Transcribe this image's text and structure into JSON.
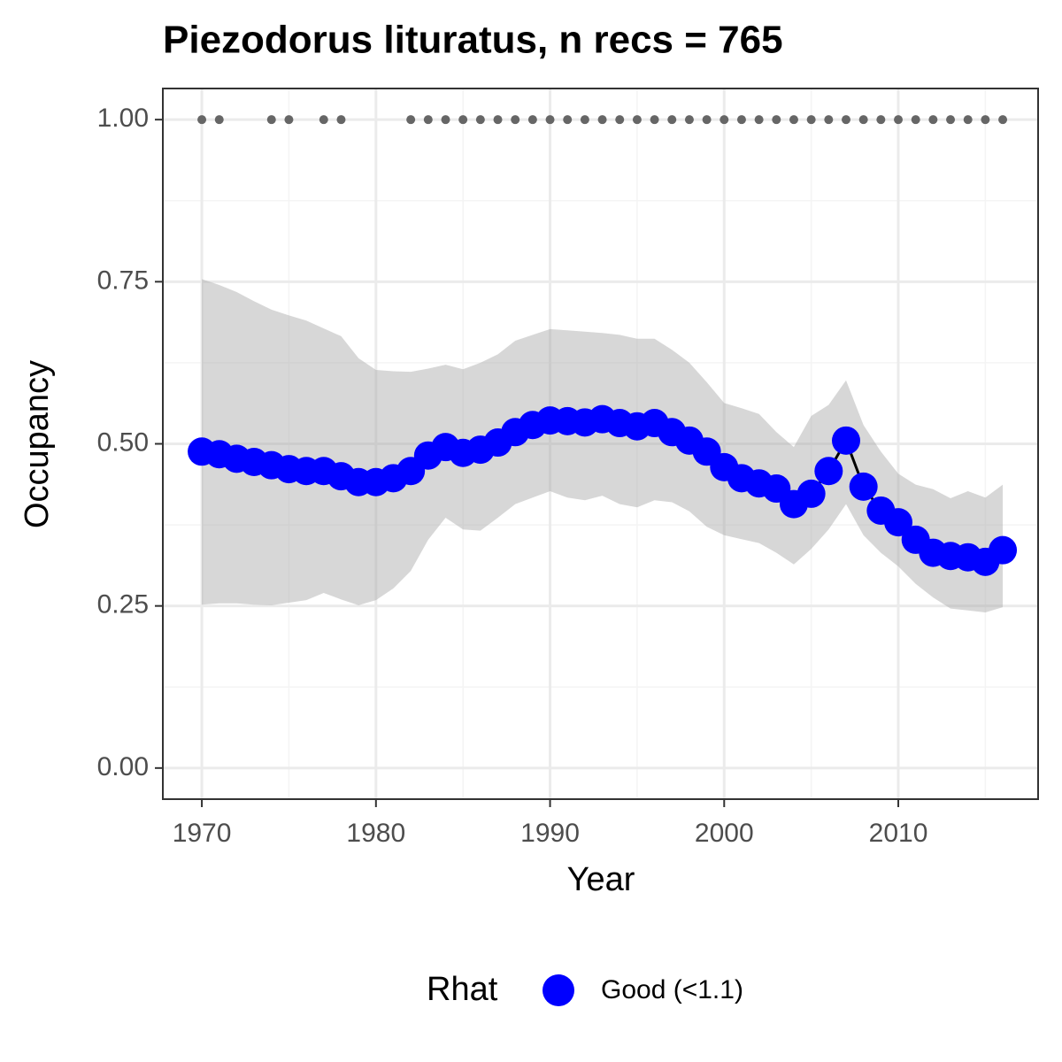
{
  "chart_data": {
    "type": "line",
    "title": "Piezodorus lituratus, n recs = 765",
    "x_label": "Year",
    "y_label": "Occupancy",
    "legend_title": "Rhat",
    "x": [
      1970,
      1971,
      1972,
      1973,
      1974,
      1975,
      1976,
      1977,
      1978,
      1979,
      1980,
      1981,
      1982,
      1983,
      1984,
      1985,
      1986,
      1987,
      1988,
      1989,
      1990,
      1991,
      1992,
      1993,
      1994,
      1995,
      1996,
      1997,
      1998,
      1999,
      2000,
      2001,
      2002,
      2003,
      2004,
      2005,
      2006,
      2007,
      2008,
      2009,
      2010,
      2011,
      2012,
      2013,
      2014,
      2015,
      2016
    ],
    "series": [
      {
        "name": "Good (<1.1)",
        "color": "#0000ff",
        "line_color": "#000000",
        "values": [
          0.488,
          0.484,
          0.477,
          0.472,
          0.467,
          0.461,
          0.458,
          0.458,
          0.45,
          0.441,
          0.441,
          0.447,
          0.458,
          0.482,
          0.495,
          0.486,
          0.491,
          0.502,
          0.518,
          0.529,
          0.536,
          0.535,
          0.533,
          0.538,
          0.532,
          0.527,
          0.532,
          0.518,
          0.505,
          0.488,
          0.464,
          0.447,
          0.439,
          0.431,
          0.407,
          0.423,
          0.458,
          0.505,
          0.434,
          0.397,
          0.379,
          0.352,
          0.332,
          0.327,
          0.325,
          0.318,
          0.336
        ]
      }
    ],
    "upper": [
      0.754,
      0.745,
      0.734,
      0.72,
      0.707,
      0.698,
      0.69,
      0.678,
      0.666,
      0.632,
      0.614,
      0.612,
      0.611,
      0.616,
      0.622,
      0.615,
      0.625,
      0.638,
      0.659,
      0.668,
      0.677,
      0.675,
      0.673,
      0.671,
      0.668,
      0.662,
      0.662,
      0.645,
      0.625,
      0.595,
      0.563,
      0.555,
      0.546,
      0.518,
      0.495,
      0.543,
      0.56,
      0.598,
      0.529,
      0.488,
      0.454,
      0.437,
      0.43,
      0.416,
      0.427,
      0.417,
      0.437
    ],
    "lower": [
      0.252,
      0.254,
      0.254,
      0.252,
      0.251,
      0.255,
      0.259,
      0.27,
      0.26,
      0.251,
      0.259,
      0.277,
      0.304,
      0.352,
      0.386,
      0.368,
      0.366,
      0.386,
      0.407,
      0.417,
      0.427,
      0.417,
      0.413,
      0.42,
      0.407,
      0.402,
      0.413,
      0.41,
      0.396,
      0.372,
      0.359,
      0.353,
      0.347,
      0.332,
      0.314,
      0.338,
      0.368,
      0.407,
      0.359,
      0.332,
      0.311,
      0.284,
      0.263,
      0.246,
      0.243,
      0.24,
      0.248
    ],
    "ribbon_color": "#a6a6a6",
    "records": {
      "color": "#666666",
      "x": [
        1970,
        1971,
        1974,
        1975,
        1977,
        1978,
        1982,
        1983,
        1984,
        1985,
        1986,
        1987,
        1988,
        1989,
        1990,
        1991,
        1992,
        1993,
        1994,
        1995,
        1996,
        1997,
        1998,
        1999,
        2000,
        2001,
        2002,
        2003,
        2004,
        2005,
        2006,
        2007,
        2008,
        2009,
        2010,
        2011,
        2012,
        2013,
        2014,
        2015,
        2016
      ],
      "values": [
        1,
        1,
        1,
        1,
        1,
        1,
        1,
        1,
        1,
        1,
        1,
        1,
        1,
        1,
        1,
        1,
        1,
        1,
        1,
        1,
        1,
        1,
        1,
        1,
        1,
        1,
        1,
        1,
        1,
        1,
        1,
        1,
        1,
        1,
        1,
        1,
        1,
        1,
        1,
        1,
        1
      ]
    },
    "xlim": [
      1967.76,
      2018.03
    ],
    "ylim": [
      -0.048,
      1.048
    ],
    "xticks": [
      1970,
      1980,
      1990,
      2000,
      2010
    ],
    "yticks": [
      {
        "value": 0,
        "label": "0.00"
      },
      {
        "value": 0.25,
        "label": "0.25"
      },
      {
        "value": 0.5,
        "label": "0.50"
      },
      {
        "value": 0.75,
        "label": "0.75"
      },
      {
        "value": 1,
        "label": "1.00"
      }
    ],
    "grid": true,
    "legend": "bottom"
  }
}
